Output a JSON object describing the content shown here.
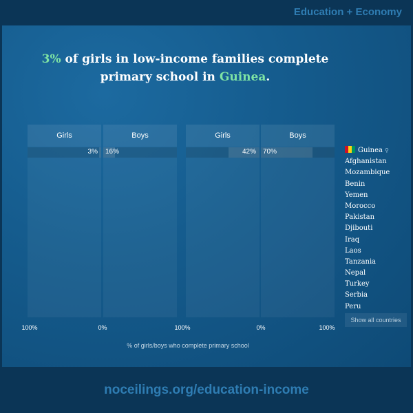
{
  "header": {
    "category": "Education + Economy"
  },
  "headline": {
    "percent": "3%",
    "line_part1": " of girls in low-income families complete primary school in ",
    "country": "Guinea",
    "period": "."
  },
  "chart_data": {
    "type": "bar",
    "xlabel": "% of girls/boys who complete primary school",
    "groups": [
      {
        "series": [
          {
            "name": "Girls",
            "value": 3,
            "label": "3%"
          },
          {
            "name": "Boys",
            "value": 16,
            "label": "16%"
          }
        ]
      },
      {
        "series": [
          {
            "name": "Girls",
            "value": 42,
            "label": "42%"
          },
          {
            "name": "Boys",
            "value": 70,
            "label": "70%"
          }
        ]
      }
    ],
    "axis_ticks": [
      "100%",
      "0%",
      "100%",
      "0%",
      "100%"
    ],
    "xlim": [
      0,
      100
    ]
  },
  "countries": {
    "selected": "Guinea",
    "items": [
      "Guinea",
      "Afghanistan",
      "Mozambique",
      "Benin",
      "Yemen",
      "Morocco",
      "Pakistan",
      "Djibouti",
      "Iraq",
      "Laos",
      "Tanzania",
      "Nepal",
      "Turkey",
      "Serbia",
      "Peru"
    ],
    "show_all_label": "Show all countries"
  },
  "footer": {
    "url": "noceilings.org/education-income"
  },
  "colors": {
    "accent": "#7ee3a4",
    "brand_blue": "#2f7db3",
    "background": "#0b3556"
  }
}
